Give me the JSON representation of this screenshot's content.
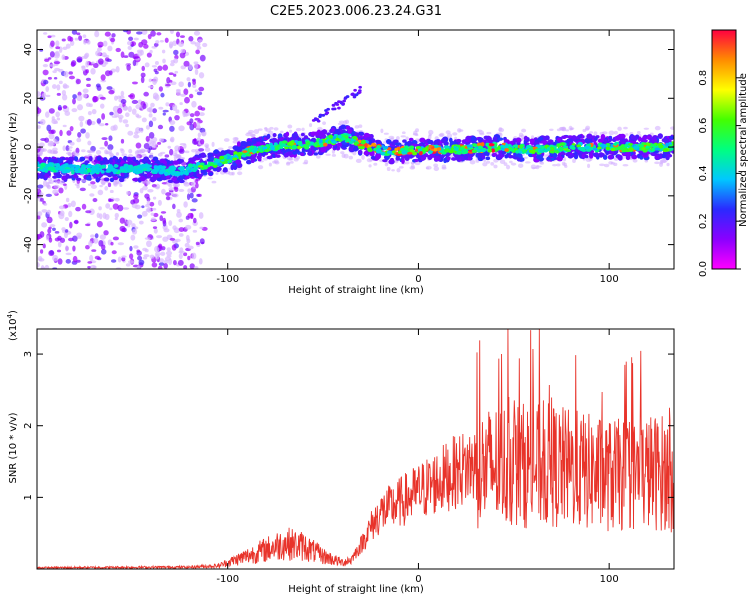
{
  "title": "C2E5.2023.006.23.24.G31",
  "chart_data": [
    {
      "type": "heatmap",
      "xlabel": "Height of straight line (km)",
      "ylabel": "Frequency (Hz)",
      "xlim": [
        -200,
        134
      ],
      "ylim": [
        -50,
        48
      ],
      "xticks": [
        -100,
        0,
        100
      ],
      "yticks": [
        -40,
        -20,
        0,
        20,
        40
      ],
      "colorbar": {
        "label": "Normalized spectral amplitude",
        "range": [
          0.0,
          1.0
        ],
        "ticks": [
          "0.0",
          "0.2",
          "0.4",
          "0.6",
          "0.8"
        ],
        "colormap": [
          "#ff00ff",
          "#8a00ff",
          "#2a2aff",
          "#00c8ff",
          "#00ff80",
          "#44ff00",
          "#ffff00",
          "#ff8c00",
          "#ff0040"
        ]
      },
      "ridge": {
        "x": [
          -200,
          -180,
          -160,
          -140,
          -125,
          -115,
          -100,
          -90,
          -80,
          -70,
          -60,
          -50,
          -45,
          -38,
          -32,
          -25,
          -15,
          0,
          20,
          40,
          60,
          80,
          100,
          120,
          134
        ],
        "freq": [
          -8,
          -9,
          -9,
          -9,
          -10,
          -8,
          -5,
          -2,
          0,
          1,
          1,
          2,
          3,
          4,
          2,
          0,
          -2,
          -1,
          -1,
          0,
          -1,
          0,
          0,
          0,
          0
        ]
      },
      "noise_region_xlim": [
        -200,
        -112
      ]
    },
    {
      "type": "line",
      "xlabel": "Height of straight line (km)",
      "ylabel": "SNR (10 * v/v)",
      "y_multiplier": "(x10",
      "y_multiplier_exp": "4",
      "y_multiplier_close": ")",
      "xlim": [
        -200,
        134
      ],
      "ylim": [
        0,
        3.35
      ],
      "xticks": [
        -100,
        0,
        100
      ],
      "yticks": [
        1,
        2,
        3
      ],
      "color": "#e8332a",
      "envelope": {
        "x": [
          -200,
          -120,
          -105,
          -100,
          -90,
          -80,
          -70,
          -60,
          -50,
          -40,
          -35,
          -30,
          -25,
          -20,
          -10,
          0,
          10,
          20,
          30,
          40,
          50,
          60,
          70,
          80,
          90,
          100,
          110,
          120,
          130,
          134
        ],
        "snr": [
          0.02,
          0.03,
          0.05,
          0.1,
          0.2,
          0.3,
          0.4,
          0.35,
          0.2,
          0.1,
          0.15,
          0.35,
          0.6,
          0.8,
          0.95,
          1.1,
          1.25,
          1.4,
          1.5,
          1.6,
          1.62,
          1.6,
          1.6,
          1.55,
          1.5,
          1.45,
          1.45,
          1.5,
          1.5,
          1.4
        ]
      }
    }
  ]
}
